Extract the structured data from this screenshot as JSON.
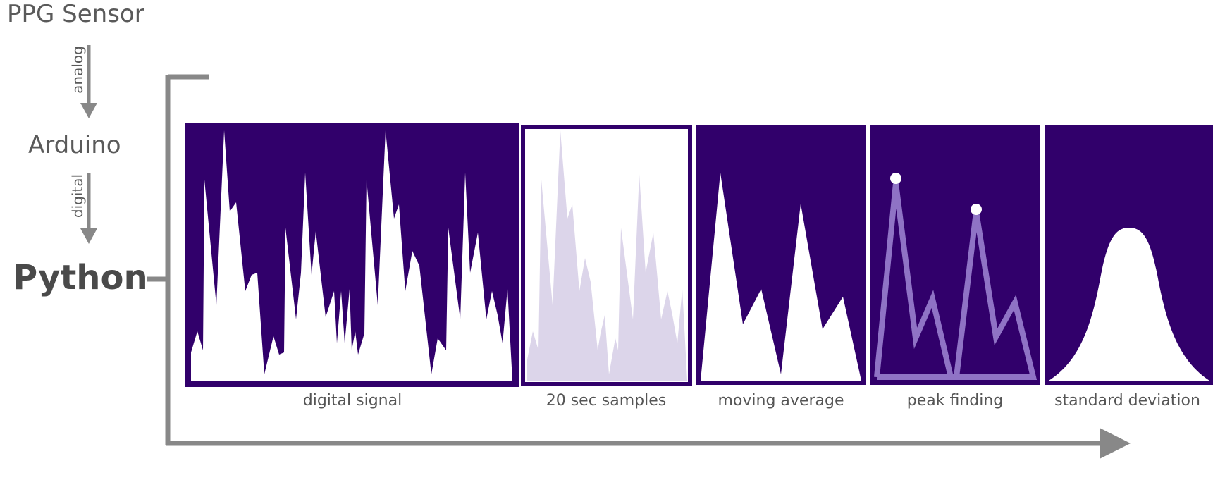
{
  "stages": {
    "sensor": "PPG Sensor",
    "analog_label": "analog",
    "microcontroller": "Arduino",
    "digital_label": "digital",
    "software": "Python"
  },
  "panels": [
    {
      "id": "digital-signal",
      "label": "digital signal"
    },
    {
      "id": "samples",
      "label": "20 sec samples"
    },
    {
      "id": "moving-average",
      "label": "moving average"
    },
    {
      "id": "peak-finding",
      "label": "peak finding"
    },
    {
      "id": "standard-deviation",
      "label": "standard deviation"
    }
  ],
  "colors": {
    "panel_fill": "#31006b",
    "signal": "#ffffff",
    "sample_fill": "#dcd5ea",
    "peak_line": "#8f73c5",
    "arrow": "#888888",
    "text": "#555555"
  }
}
